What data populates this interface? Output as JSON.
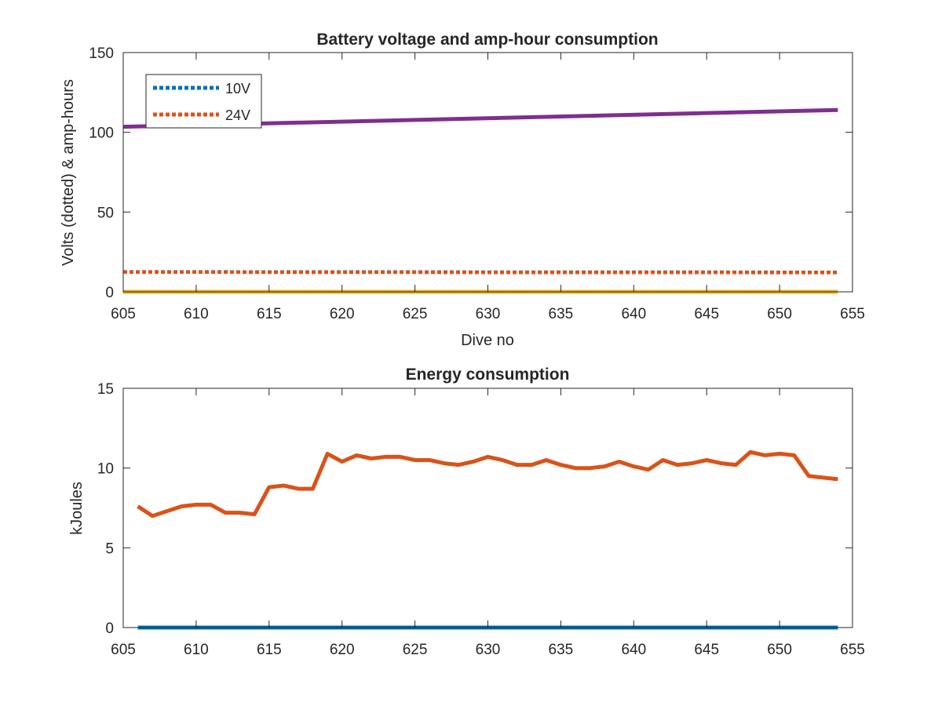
{
  "chart_data": [
    {
      "type": "line",
      "title": "Battery voltage and amp-hour consumption",
      "xlabel": "Dive no",
      "ylabel": "Volts (dotted) & amp-hours",
      "xlim": [
        605,
        655
      ],
      "ylim": [
        0,
        150
      ],
      "xticks": [
        605,
        610,
        615,
        620,
        625,
        630,
        635,
        640,
        645,
        650,
        655
      ],
      "yticks": [
        0,
        50,
        100,
        150
      ],
      "grid": false,
      "legend_position": "top-left",
      "series": [
        {
          "name": "10V",
          "style": "dotted",
          "color": "#0072BD",
          "x": [
            605,
            610,
            615,
            620,
            625,
            630,
            635,
            640,
            645,
            650,
            654
          ],
          "y": [
            12.5,
            12.5,
            12.4,
            12.4,
            12.4,
            12.3,
            12.3,
            12.3,
            12.3,
            12.2,
            12.2
          ]
        },
        {
          "name": "24V",
          "style": "dotted",
          "color": "#D95319",
          "x": [
            605,
            610,
            615,
            620,
            625,
            630,
            635,
            640,
            645,
            650,
            654
          ],
          "y": [
            12.4,
            12.4,
            12.3,
            12.3,
            12.3,
            12.2,
            12.2,
            12.2,
            12.2,
            12.1,
            12.1
          ]
        },
        {
          "style": "solid",
          "color": "#7E2F8E",
          "x": [
            605,
            654
          ],
          "y": [
            103.5,
            114
          ]
        },
        {
          "style": "solid",
          "color": "#EDB120",
          "x": [
            605,
            654
          ],
          "y": [
            0,
            0
          ]
        }
      ]
    },
    {
      "type": "line",
      "title": "Energy consumption",
      "xlabel": "",
      "ylabel": "kJoules",
      "xlim": [
        605,
        655
      ],
      "ylim": [
        0,
        15
      ],
      "xticks": [
        605,
        610,
        615,
        620,
        625,
        630,
        635,
        640,
        645,
        650,
        655
      ],
      "yticks": [
        0,
        5,
        10,
        15
      ],
      "grid": false,
      "series": [
        {
          "style": "solid",
          "color": "#0072BD",
          "x": [
            606,
            654
          ],
          "y": [
            0,
            0
          ]
        },
        {
          "style": "solid",
          "color": "#D95319",
          "x": [
            606,
            607,
            608,
            609,
            610,
            611,
            612,
            613,
            614,
            615,
            616,
            617,
            618,
            619,
            620,
            621,
            622,
            623,
            624,
            625,
            626,
            627,
            628,
            629,
            630,
            631,
            632,
            633,
            634,
            635,
            636,
            637,
            638,
            639,
            640,
            641,
            642,
            643,
            644,
            645,
            646,
            647,
            648,
            649,
            650,
            651,
            652,
            653,
            654
          ],
          "y": [
            7.6,
            7.0,
            7.3,
            7.6,
            7.7,
            7.7,
            7.2,
            7.2,
            7.1,
            8.8,
            8.9,
            8.7,
            8.7,
            10.9,
            10.4,
            10.8,
            10.6,
            10.7,
            10.7,
            10.5,
            10.5,
            10.3,
            10.2,
            10.4,
            10.7,
            10.5,
            10.2,
            10.2,
            10.5,
            10.2,
            10.0,
            10.0,
            10.1,
            10.4,
            10.1,
            9.9,
            10.5,
            10.2,
            10.3,
            10.5,
            10.3,
            10.2,
            11.0,
            10.8,
            10.9,
            10.8,
            9.5,
            9.4,
            9.3
          ]
        }
      ]
    }
  ]
}
